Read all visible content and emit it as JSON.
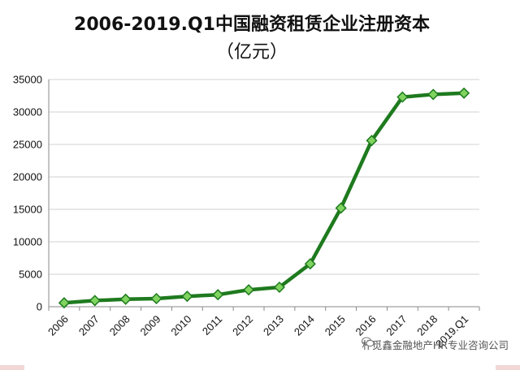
{
  "title_line1": "2006-2019.Q1中国融资租赁企业注册资本",
  "title_line2": "（亿元）",
  "watermark_text": "朴觅鑫金融地产HR专业咨询公司",
  "chart_data": {
    "type": "line",
    "title": "2006-2019.Q1中国融资租赁企业注册资本（亿元）",
    "categories": [
      "2006",
      "2007",
      "2008",
      "2009",
      "2010",
      "2011",
      "2012",
      "2013",
      "2014",
      "2015",
      "2016",
      "2017",
      "2018",
      "2019.Q1"
    ],
    "series": [
      {
        "values": [
          600,
          950,
          1150,
          1250,
          1600,
          1850,
          2600,
          3000,
          6600,
          15200,
          25600,
          32300,
          32700,
          32900
        ],
        "color": "#1e7a1e",
        "marker_color": "#7fd35f",
        "marker": "diamond"
      }
    ],
    "ylim": [
      0,
      35000
    ],
    "yticks": [
      "0",
      "5000",
      "10000",
      "15000",
      "20000",
      "25000",
      "30000",
      "35000"
    ],
    "grid": true,
    "legend": "none"
  }
}
